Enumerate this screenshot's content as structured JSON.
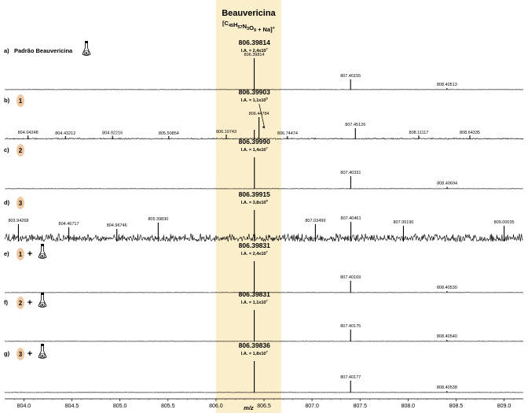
{
  "chart_data": {
    "type": "line",
    "title": "Beauvericina",
    "formula": {
      "parts": [
        {
          "t": "[C",
          "s": "n"
        },
        {
          "t": "45",
          "s": "sub"
        },
        {
          "t": "H",
          "s": "n"
        },
        {
          "t": "57",
          "s": "sub"
        },
        {
          "t": "N",
          "s": "n"
        },
        {
          "t": "3",
          "s": "sub"
        },
        {
          "t": "O",
          "s": "n"
        },
        {
          "t": "9",
          "s": "sub"
        },
        {
          "t": " + Na]",
          "s": "n"
        },
        {
          "t": "+",
          "s": "sup"
        }
      ]
    },
    "xlabel": "m/z",
    "ylabel": "",
    "xlim": [
      803.8,
      809.2
    ],
    "x_ticks": [
      "804.0",
      "804.5",
      "805.0",
      "805.5",
      "806.0",
      "806.5",
      "807.0",
      "807.5",
      "808.0",
      "808.5",
      "809.0"
    ],
    "x_tick_values": [
      804.0,
      804.5,
      805.0,
      805.5,
      806.0,
      806.5,
      807.0,
      807.5,
      808.0,
      808.5,
      809.0
    ],
    "highlight_range": [
      806.0,
      806.68
    ],
    "highlight_color": "#fbeecb",
    "grid": false,
    "legend": "none",
    "panels": [
      {
        "letter": "a)",
        "label": "Padrão Beauvericina",
        "markers": [
          "std"
        ],
        "main_mz": "806.39814",
        "ia": {
          "base": "I.A. = 2,4x10",
          "exp": "7"
        },
        "noise": 0.015,
        "peaks": [
          {
            "x": 806.398,
            "h": 1.0,
            "label": "806.39814"
          },
          {
            "x": 807.40155,
            "h": 0.33,
            "label": "807.40155"
          },
          {
            "x": 808.40513,
            "h": 0.05,
            "label": "808.40513"
          }
        ]
      },
      {
        "letter": "b)",
        "label": "",
        "markers": [
          "1"
        ],
        "main_mz": "806.39903",
        "ia": {
          "base": "I.A. = 1,1x10",
          "exp": "5"
        },
        "noise": 0.07,
        "arrow": true,
        "peaks": [
          {
            "x": 804.0425,
            "h": 0.12,
            "label": "804.04248"
          },
          {
            "x": 804.4321,
            "h": 0.1,
            "label": "804.43212"
          },
          {
            "x": 804.9222,
            "h": 0.11,
            "label": "804.92216"
          },
          {
            "x": 805.5085,
            "h": 0.1,
            "label": "805.50854"
          },
          {
            "x": 806.1074,
            "h": 0.15,
            "label": "806.10743"
          },
          {
            "x": 806.399,
            "h": 0.3,
            "label": ""
          },
          {
            "x": 806.4478,
            "h": 0.7,
            "label": "806.44784"
          },
          {
            "x": 806.7447,
            "h": 0.1,
            "label": "806.74474"
          },
          {
            "x": 807.4513,
            "h": 0.35,
            "label": "807.45126"
          },
          {
            "x": 808.1112,
            "h": 0.12,
            "label": "808.11117"
          },
          {
            "x": 808.6434,
            "h": 0.12,
            "label": "808.64335"
          }
        ]
      },
      {
        "letter": "c)",
        "label": "",
        "markers": [
          "2"
        ],
        "main_mz": "806.39990",
        "ia": {
          "base": "I.A. = 1,4x10",
          "exp": "7"
        },
        "noise": 0.015,
        "peaks": [
          {
            "x": 806.3999,
            "h": 1.0,
            "label": ""
          },
          {
            "x": 807.4033,
            "h": 0.4,
            "label": "807.40331"
          },
          {
            "x": 808.4069,
            "h": 0.06,
            "label": "808.40694"
          }
        ]
      },
      {
        "letter": "d)",
        "label": "",
        "markers": [
          "3"
        ],
        "main_mz": "806.39915",
        "ia": {
          "base": "I.A. = 3,8x10",
          "exp": "5"
        },
        "noise": 0.45,
        "peaks": [
          {
            "x": 803.9427,
            "h": 0.55,
            "label": "803.94268"
          },
          {
            "x": 804.4672,
            "h": 0.45,
            "label": "804.46717"
          },
          {
            "x": 804.9675,
            "h": 0.4,
            "label": "804.96746"
          },
          {
            "x": 805.3983,
            "h": 0.6,
            "label": "805.39830"
          },
          {
            "x": 806.3992,
            "h": 1.0,
            "label": ""
          },
          {
            "x": 807.035,
            "h": 0.55,
            "label": "807.03499"
          },
          {
            "x": 807.4046,
            "h": 0.62,
            "label": "807.40461"
          },
          {
            "x": 807.9519,
            "h": 0.5,
            "label": "807.95190"
          },
          {
            "x": 809.0004,
            "h": 0.5,
            "label": "809.00035"
          }
        ]
      },
      {
        "letter": "e)",
        "label": "",
        "markers": [
          "1",
          "+",
          "std"
        ],
        "main_mz": "806.39831",
        "ia": {
          "base": "I.A. = 2,4x10",
          "exp": "7"
        },
        "noise": 0.015,
        "peaks": [
          {
            "x": 806.3983,
            "h": 1.0,
            "label": ""
          },
          {
            "x": 807.4017,
            "h": 0.38,
            "label": "807.40169"
          },
          {
            "x": 808.4053,
            "h": 0.05,
            "label": "808.40530"
          }
        ]
      },
      {
        "letter": "f)",
        "label": "",
        "markers": [
          "2",
          "+",
          "std"
        ],
        "main_mz": "806.39831",
        "ia": {
          "base": "I.A. = 1,1x10",
          "exp": "7"
        },
        "noise": 0.015,
        "peaks": [
          {
            "x": 806.3983,
            "h": 1.0,
            "label": ""
          },
          {
            "x": 807.4018,
            "h": 0.38,
            "label": "807.40175"
          },
          {
            "x": 808.4054,
            "h": 0.05,
            "label": "808.40540"
          }
        ]
      },
      {
        "letter": "g)",
        "label": "",
        "markers": [
          "3",
          "+",
          "std"
        ],
        "main_mz": "806.39836",
        "ia": {
          "base": "I.A. = 1,8x10",
          "exp": "7"
        },
        "noise": 0.015,
        "peaks": [
          {
            "x": 806.3984,
            "h": 1.0,
            "label": ""
          },
          {
            "x": 807.4018,
            "h": 0.38,
            "label": "807.40177"
          },
          {
            "x": 808.4054,
            "h": 0.05,
            "label": "808.40538"
          }
        ]
      }
    ]
  },
  "colors": {
    "line": "#000000",
    "highlight": "#fbeecb",
    "sample_marker": "#efc9a3",
    "standard_marker_letter": "B"
  }
}
